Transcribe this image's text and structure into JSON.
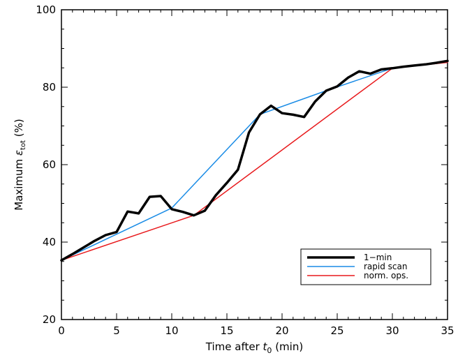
{
  "chart_data": {
    "type": "line",
    "xlabel": {
      "prefix": "Time after ",
      "var": "t",
      "sub": "0",
      "suffix": " (min)"
    },
    "ylabel": {
      "prefix": "Maximum ",
      "var": "ε",
      "sub": "tot",
      "suffix": " (%)"
    },
    "xlim": [
      0,
      35
    ],
    "ylim": [
      20,
      100
    ],
    "x_ticks": [
      0,
      5,
      10,
      15,
      20,
      25,
      30,
      35
    ],
    "x_tick_labels": [
      "0",
      "5",
      "10",
      "15",
      "20",
      "25",
      "30",
      "35"
    ],
    "y_ticks": [
      20,
      40,
      60,
      80,
      100
    ],
    "y_tick_labels": [
      "20",
      "40",
      "60",
      "80",
      "100"
    ],
    "grid": false,
    "legend_position": "lower-right",
    "series": [
      {
        "name": "1−min",
        "color": "#000000",
        "x": [
          0,
          1,
          2,
          3,
          4,
          5,
          6,
          7,
          8,
          9,
          10,
          11,
          12,
          13,
          14,
          15,
          16,
          17,
          18,
          19,
          20,
          21,
          22,
          23,
          24,
          25,
          26,
          27,
          28,
          29,
          30,
          31,
          32,
          33,
          34,
          35
        ],
        "y": [
          35.3,
          36.9,
          38.6,
          40.3,
          41.8,
          42.6,
          47.9,
          47.4,
          51.7,
          51.9,
          48.5,
          47.8,
          46.9,
          48.1,
          52.1,
          55.3,
          58.7,
          68.3,
          73.0,
          75.2,
          73.3,
          72.9,
          72.3,
          76.3,
          79.1,
          80.2,
          82.5,
          84.1,
          83.5,
          84.6,
          84.9,
          85.3,
          85.6,
          85.9,
          86.3,
          86.8
        ]
      },
      {
        "name": "rapid scan",
        "color": "#1a8ce6",
        "x": [
          0,
          10,
          18,
          24,
          30,
          35
        ],
        "y": [
          35.3,
          48.8,
          73.0,
          79.1,
          84.9,
          86.6
        ]
      },
      {
        "name": "norm. ops.",
        "color": "#e8191c",
        "x": [
          0,
          12,
          30,
          35
        ],
        "y": [
          35.3,
          46.9,
          84.9,
          86.4
        ]
      }
    ]
  }
}
